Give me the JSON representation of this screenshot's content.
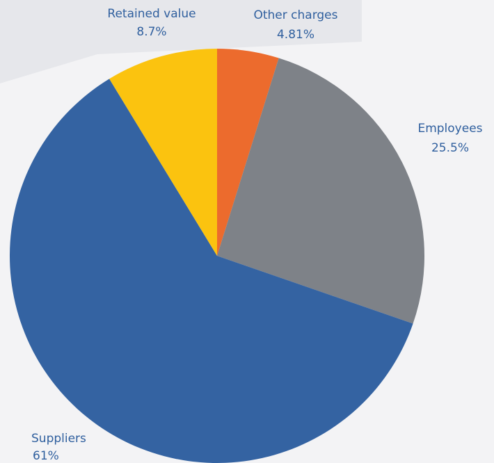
{
  "chart_data": {
    "type": "pie",
    "categories": [
      "Other charges",
      "Employees",
      "Suppliers",
      "Retained value"
    ],
    "values": [
      4.81,
      25.5,
      61,
      8.7
    ],
    "value_labels": [
      "4.81%",
      "25.5%",
      "61%",
      "8.7%"
    ],
    "colors": [
      "#ec6b2d",
      "#7e8288",
      "#3463a2",
      "#fbc30f"
    ]
  }
}
